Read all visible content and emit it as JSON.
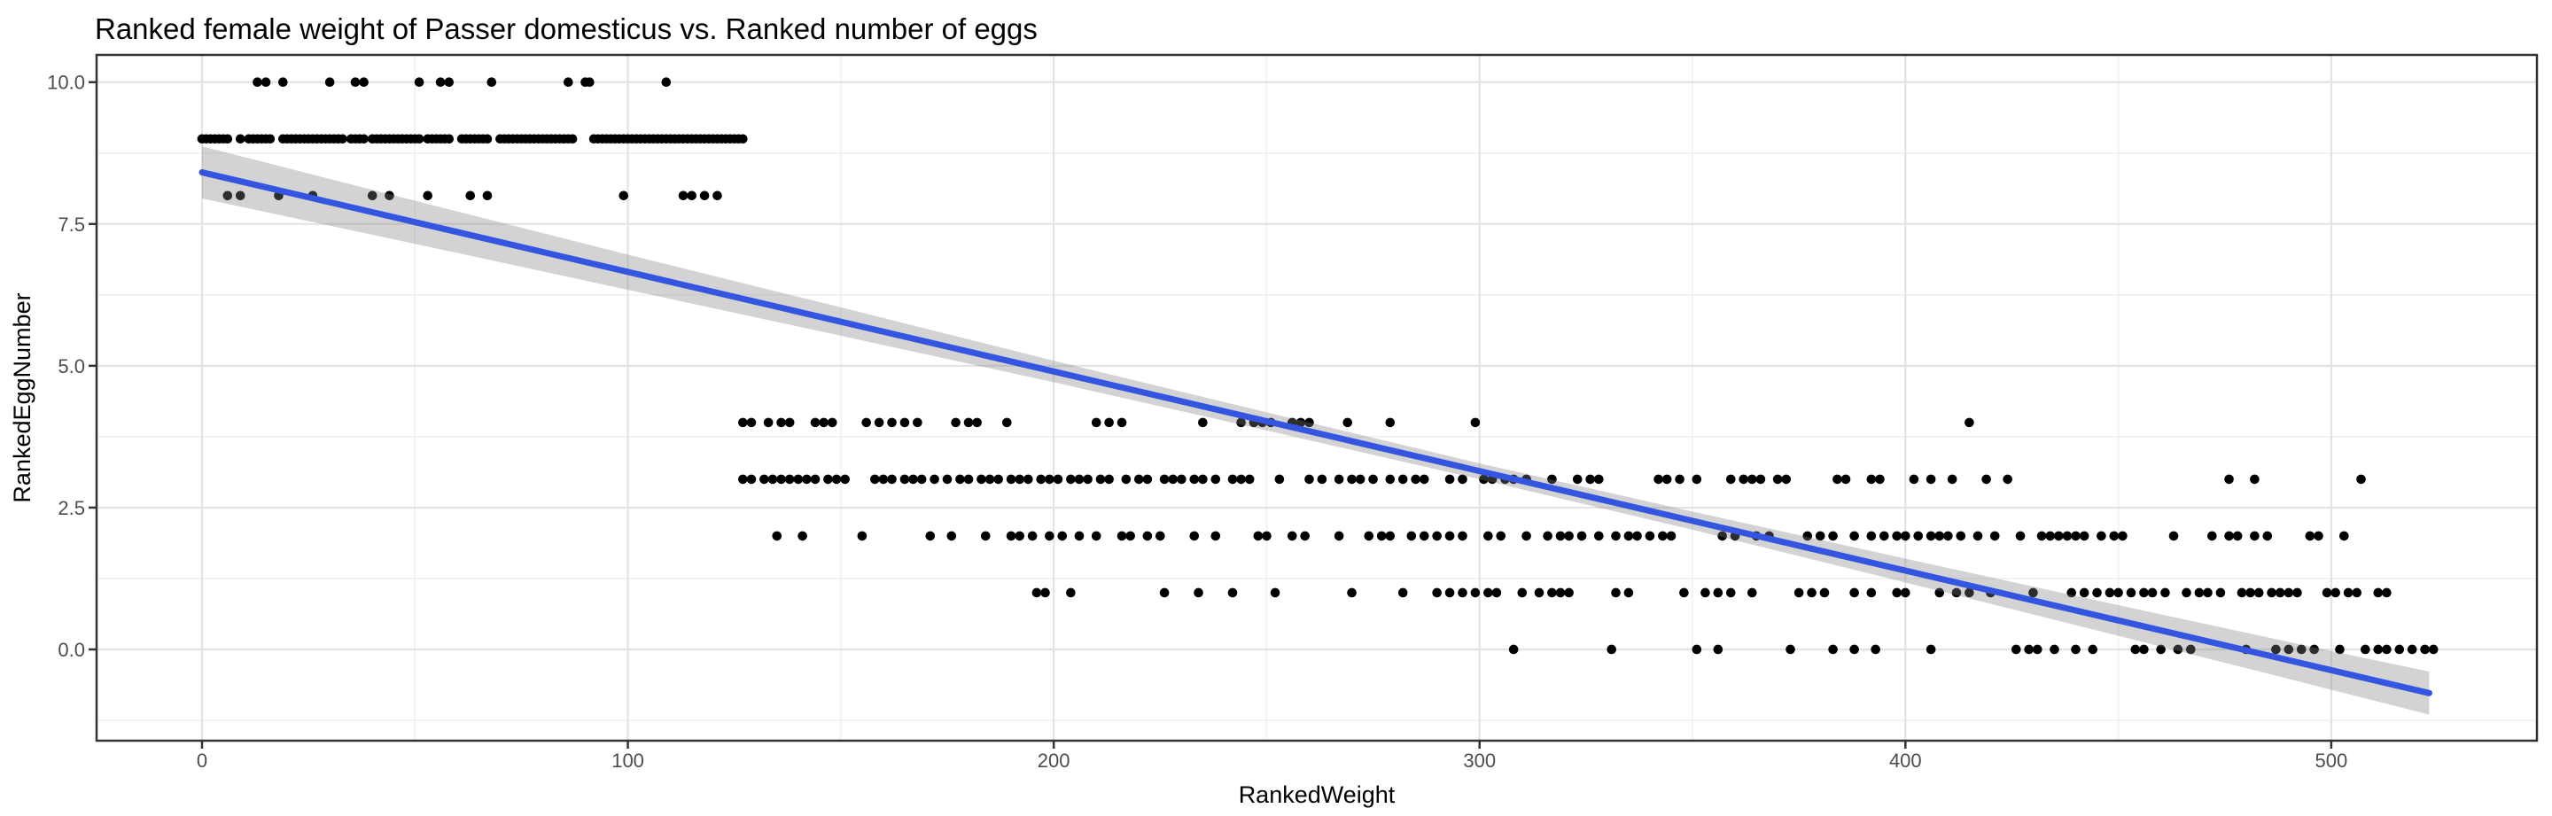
{
  "title": "Ranked female weight of Passer domesticus vs. Ranked number of eggs",
  "colors": {
    "background": "#FFFFFF",
    "point": "#000000",
    "line": "#3355E0",
    "band": "rgba(128,128,128,0.35)",
    "grid_major": "#E3E3E3",
    "grid_minor": "#F1F1F1",
    "panel_border": "#333333",
    "tick": "#333333",
    "tick_label": "#4D4D4D",
    "text": "#000000"
  },
  "chart_data": {
    "type": "scatter",
    "title": "Ranked female weight of Passer domesticus vs. Ranked number of eggs",
    "xlabel": "RankedWeight",
    "ylabel": "RankedEggNumber",
    "xlim": [
      -24.76,
      548.3
    ],
    "ylim": [
      -1.609,
      10.48
    ],
    "x_ticks": [
      0,
      100,
      200,
      300,
      400,
      500
    ],
    "x_tick_labels": [
      "0",
      "100",
      "200",
      "300",
      "400",
      "500"
    ],
    "x_minor_ticks": [
      50,
      150,
      250,
      350,
      450
    ],
    "y_ticks": [
      0,
      2.5,
      5,
      7.5,
      10
    ],
    "y_tick_labels": [
      "0.0",
      "2.5",
      "5.0",
      "7.5",
      "10.0"
    ],
    "y_minor_ticks": [
      -1.25,
      1.25,
      3.75,
      6.25,
      8.75
    ],
    "grid": true,
    "legend_position": "none",
    "point_groups": [
      {
        "y": 10,
        "x": [
          13,
          15,
          19,
          30,
          36,
          38,
          51,
          56,
          58,
          68,
          86,
          90,
          91,
          109
        ]
      },
      {
        "y": 9,
        "x": [
          0,
          1,
          2,
          3,
          4,
          5,
          6,
          9,
          11,
          12,
          13,
          14,
          15,
          16,
          19,
          20,
          21,
          22,
          23,
          24,
          25,
          26,
          27,
          28,
          29,
          30,
          31,
          32,
          33,
          35,
          36,
          37,
          38,
          40,
          41,
          42,
          43,
          44,
          45,
          46,
          47,
          48,
          49,
          50,
          51,
          53,
          54,
          55,
          56,
          57,
          58,
          61,
          62,
          63,
          64,
          65,
          66,
          67,
          70,
          71,
          72,
          73,
          74,
          75,
          76,
          77,
          78,
          79,
          80,
          81,
          82,
          83,
          84,
          85,
          86,
          87,
          92,
          93,
          94,
          95,
          96,
          97,
          98,
          99,
          100,
          101,
          102,
          103,
          104,
          105,
          106,
          107,
          108,
          109,
          110,
          111,
          112,
          113,
          114,
          115,
          116,
          117,
          118,
          119,
          120,
          121,
          122,
          123,
          124,
          125,
          126,
          127
        ]
      },
      {
        "y": 8,
        "x": [
          6,
          9,
          18,
          26,
          40,
          44,
          53,
          63,
          67,
          99,
          113,
          115,
          118,
          121
        ]
      },
      {
        "y": 4,
        "x": [
          127,
          129,
          133,
          136,
          138,
          144,
          146,
          148,
          156,
          159,
          162,
          165,
          168,
          177,
          180,
          182,
          189,
          210,
          213,
          216,
          235,
          244,
          247,
          249,
          251,
          256,
          258,
          260,
          269,
          279,
          299,
          415
        ]
      },
      {
        "y": 3,
        "x": [
          127,
          129,
          132,
          134,
          136,
          138,
          140,
          142,
          144,
          147,
          149,
          151,
          158,
          160,
          162,
          165,
          167,
          169,
          172,
          175,
          178,
          180,
          183,
          185,
          187,
          190,
          192,
          194,
          197,
          199,
          201,
          204,
          206,
          208,
          211,
          213,
          217,
          220,
          222,
          226,
          228,
          230,
          233,
          235,
          238,
          242,
          244,
          246,
          253,
          260,
          263,
          267,
          270,
          272,
          275,
          279,
          282,
          285,
          287,
          293,
          296,
          301,
          303,
          306,
          308,
          311,
          317,
          323,
          326,
          328,
          342,
          344,
          347,
          351,
          359,
          362,
          364,
          366,
          370,
          372,
          384,
          386,
          392,
          394,
          402,
          406,
          411,
          419,
          424,
          476,
          482,
          507
        ]
      },
      {
        "y": 2,
        "x": [
          135,
          141,
          155,
          171,
          176,
          184,
          190,
          192,
          195,
          199,
          202,
          206,
          210,
          216,
          218,
          222,
          225,
          233,
          238,
          248,
          250,
          256,
          259,
          267,
          274,
          277,
          279,
          284,
          287,
          290,
          293,
          296,
          302,
          305,
          311,
          316,
          319,
          321,
          324,
          328,
          332,
          335,
          337,
          340,
          343,
          345,
          357,
          360,
          365,
          368,
          377,
          380,
          383,
          388,
          392,
          395,
          398,
          400,
          403,
          406,
          408,
          410,
          413,
          417,
          421,
          427,
          432,
          434,
          436,
          438,
          440,
          442,
          446,
          449,
          451,
          463,
          472,
          476,
          478,
          482,
          485,
          495,
          497,
          503
        ]
      },
      {
        "y": 1,
        "x": [
          196,
          198,
          204,
          226,
          234,
          242,
          252,
          270,
          282,
          290,
          293,
          296,
          299,
          302,
          304,
          310,
          314,
          317,
          319,
          321,
          332,
          335,
          348,
          353,
          356,
          359,
          364,
          375,
          378,
          381,
          388,
          392,
          398,
          400,
          408,
          412,
          415,
          420,
          430,
          439,
          442,
          445,
          448,
          450,
          453,
          456,
          458,
          461,
          466,
          469,
          471,
          474,
          479,
          481,
          483,
          486,
          488,
          490,
          492,
          499,
          501,
          504,
          506,
          511,
          513
        ]
      },
      {
        "y": 0,
        "x": [
          308,
          331,
          351,
          356,
          373,
          383,
          388,
          393,
          406,
          426,
          429,
          431,
          435,
          440,
          444,
          454,
          456,
          460,
          464,
          467,
          480,
          487,
          490,
          493,
          496,
          502,
          508,
          511,
          513,
          516,
          519,
          522,
          524
        ]
      }
    ],
    "regression_line": {
      "x_start": 0,
      "y_start": 8.41,
      "x_end": 523,
      "y_end": -0.77
    },
    "confidence_band": {
      "x": [
        0,
        50,
        100,
        150,
        200,
        250,
        300,
        350,
        400,
        450,
        500,
        523
      ],
      "y_center": [
        8.41,
        7.53,
        6.65,
        5.78,
        4.9,
        4.02,
        3.14,
        2.27,
        1.39,
        0.51,
        -0.37,
        -0.77
      ],
      "half_width": [
        0.46,
        0.38,
        0.31,
        0.25,
        0.19,
        0.16,
        0.14,
        0.16,
        0.21,
        0.27,
        0.34,
        0.38
      ]
    }
  }
}
